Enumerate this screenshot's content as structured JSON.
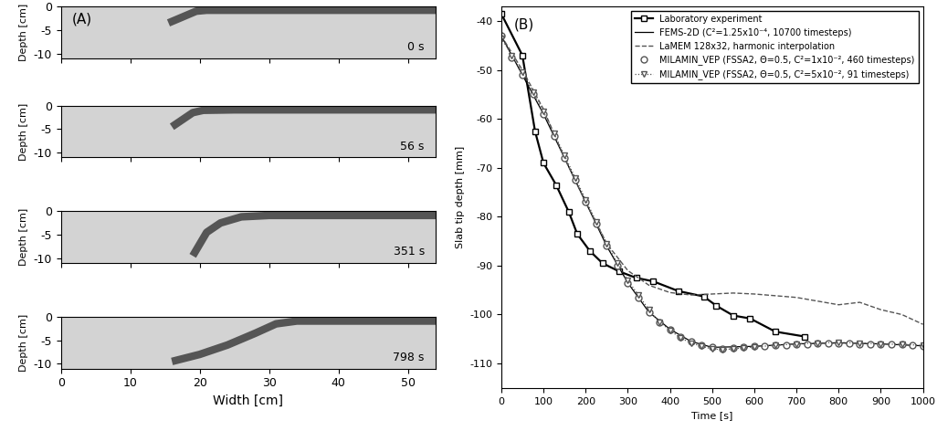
{
  "chart_data": [
    {
      "type": "line",
      "panel_label": "(A)",
      "time_label": "0 s",
      "y_label": "Depth [cm]",
      "xlim": [
        0,
        54
      ],
      "ylim": [
        -11,
        0
      ],
      "xticks": [
        0,
        10,
        20,
        30,
        40,
        50
      ],
      "yticks": [
        -10,
        -5,
        0
      ],
      "tick_labels": "y",
      "color": "#555555",
      "x": [
        15.5,
        19.5,
        21,
        54
      ],
      "values": [
        -3.5,
        -1,
        -0.8,
        -0.8
      ]
    },
    {
      "type": "line",
      "time_label": "56 s",
      "y_label": "Depth [cm]",
      "xlim": [
        0,
        54
      ],
      "ylim": [
        -11,
        0
      ],
      "xticks": [
        0,
        10,
        20,
        30,
        40,
        50
      ],
      "yticks": [
        -10,
        -5,
        0
      ],
      "tick_labels": "y",
      "color": "#555555",
      "x": [
        16,
        19,
        20.5,
        25,
        54
      ],
      "values": [
        -4.5,
        -1.5,
        -1,
        -0.9,
        -0.9
      ]
    },
    {
      "type": "line",
      "time_label": "351 s",
      "y_label": "Depth [cm]",
      "xlim": [
        0,
        54
      ],
      "ylim": [
        -11,
        0
      ],
      "xticks": [
        0,
        10,
        20,
        30,
        40,
        50
      ],
      "yticks": [
        -10,
        -5,
        0
      ],
      "tick_labels": "y",
      "color": "#555555",
      "x": [
        19,
        20,
        21,
        23,
        26,
        30,
        54
      ],
      "values": [
        -9.5,
        -7,
        -4.5,
        -2.5,
        -1.2,
        -0.9,
        -0.9
      ]
    },
    {
      "type": "line",
      "time_label": "798 s",
      "y_label": "Depth [cm]",
      "x_label": "Width [cm]",
      "xlim": [
        0,
        54
      ],
      "ylim": [
        -11,
        0
      ],
      "xticks": [
        0,
        10,
        20,
        30,
        40,
        50
      ],
      "yticks": [
        -10,
        -5,
        0
      ],
      "color": "#555555",
      "x": [
        16,
        20,
        24,
        28,
        31,
        34,
        54
      ],
      "values": [
        -9.5,
        -8,
        -6,
        -3.5,
        -1.5,
        -0.9,
        -0.9
      ]
    },
    {
      "type": "line",
      "panel_label": "(B)",
      "x_label": "Time [s]",
      "y_label": "Slab tip depth [mm]",
      "xlim": [
        0,
        1000
      ],
      "ylim": [
        -115,
        -37
      ],
      "xticks": [
        0,
        100,
        200,
        300,
        400,
        500,
        600,
        700,
        800,
        900,
        1000
      ],
      "yticks": [
        -110,
        -100,
        -90,
        -80,
        -70,
        -60,
        -50,
        -40
      ],
      "legend": "upper right",
      "series": [
        {
          "name": "Laboratory experiment",
          "color": "#000000",
          "marker": "s",
          "line_style": "solid",
          "x": [
            0,
            50,
            80,
            100,
            130,
            160,
            180,
            210,
            240,
            280,
            320,
            360,
            420,
            480,
            510,
            550,
            590,
            650,
            720
          ],
          "values": [
            -38.5,
            -47,
            -62.5,
            -69,
            -73.5,
            -79,
            -83.5,
            -87,
            -89.5,
            -91.2,
            -92.5,
            -93.2,
            -95.2,
            -96.3,
            -98.2,
            -100.2,
            -100.8,
            -103.5,
            -104.5
          ]
        },
        {
          "name": "FEMS-2D (C²=1.25x10⁻⁴, 10700 timesteps)",
          "color": "#000000",
          "marker": "none",
          "line_style": "solid",
          "x": [
            0,
            50,
            100,
            150,
            200,
            250,
            300,
            350,
            400,
            450,
            500,
            600,
            700,
            800,
            900,
            1000
          ],
          "values": [
            -43,
            -51,
            -59,
            -68,
            -77,
            -86,
            -93.5,
            -99.5,
            -103,
            -105.5,
            -106.7,
            -106.5,
            -106,
            -105.8,
            -106,
            -106.4
          ]
        },
        {
          "name": "LaMEM 128x32, harmonic interpolation",
          "color": "#555555",
          "marker": "none",
          "line_style": "dashed",
          "x": [
            0,
            50,
            100,
            150,
            200,
            250,
            300,
            350,
            400,
            450,
            500,
            550,
            600,
            700,
            800,
            850,
            900,
            950,
            1000
          ],
          "values": [
            -43,
            -50,
            -58,
            -68,
            -77,
            -85.5,
            -91,
            -94,
            -95.5,
            -96,
            -95.8,
            -95.6,
            -95.8,
            -96.5,
            -98,
            -97.5,
            -99,
            -100,
            -102
          ]
        },
        {
          "name": "MILAMIN_VEP (FSSA2, Θ=0.5, C²=1x10⁻², 460 timesteps)",
          "color": "#555555",
          "marker": "o",
          "line_style": "none",
          "x": [
            0,
            25,
            50,
            75,
            100,
            125,
            150,
            175,
            200,
            225,
            250,
            275,
            300,
            325,
            350,
            375,
            400,
            425,
            450,
            475,
            500,
            525,
            550,
            575,
            600,
            625,
            650,
            675,
            700,
            725,
            750,
            775,
            800,
            825,
            850,
            875,
            900,
            925,
            950,
            975,
            1000
          ],
          "values": [
            -43,
            -47.5,
            -51,
            -55,
            -59,
            -63.5,
            -68,
            -72.5,
            -77,
            -81.5,
            -86,
            -90,
            -93.5,
            -96.5,
            -99.5,
            -101.5,
            -103,
            -104.5,
            -105.5,
            -106.2,
            -106.7,
            -107,
            -106.8,
            -106.6,
            -106.5,
            -106.4,
            -106.3,
            -106.2,
            -106,
            -106,
            -105.9,
            -105.8,
            -105.8,
            -105.9,
            -106,
            -106,
            -106,
            -106,
            -106.1,
            -106.2,
            -106.4
          ]
        },
        {
          "name": "MILAMIN_VEP (FSSA2, Θ=0.5, C²=5x10⁻², 91 timesteps)",
          "color": "#555555",
          "marker": "v",
          "line_style": "dotted",
          "x": [
            0,
            25,
            50,
            75,
            100,
            125,
            150,
            175,
            200,
            225,
            250,
            275,
            300,
            325,
            350,
            375,
            400,
            425,
            450,
            475,
            500,
            525,
            550,
            575,
            600,
            650,
            700,
            750,
            800,
            850,
            900,
            950,
            1000
          ],
          "values": [
            -43.5,
            -47,
            -50.5,
            -54.5,
            -58.5,
            -63,
            -67.5,
            -72,
            -76.5,
            -81,
            -85.5,
            -89.5,
            -93,
            -96,
            -99,
            -101.5,
            -103.2,
            -104.8,
            -105.8,
            -106.5,
            -107,
            -107.2,
            -107,
            -106.8,
            -106.6,
            -106.3,
            -106,
            -105.8,
            -105.7,
            -105.8,
            -106,
            -106.1,
            -106.3
          ]
        }
      ]
    }
  ]
}
